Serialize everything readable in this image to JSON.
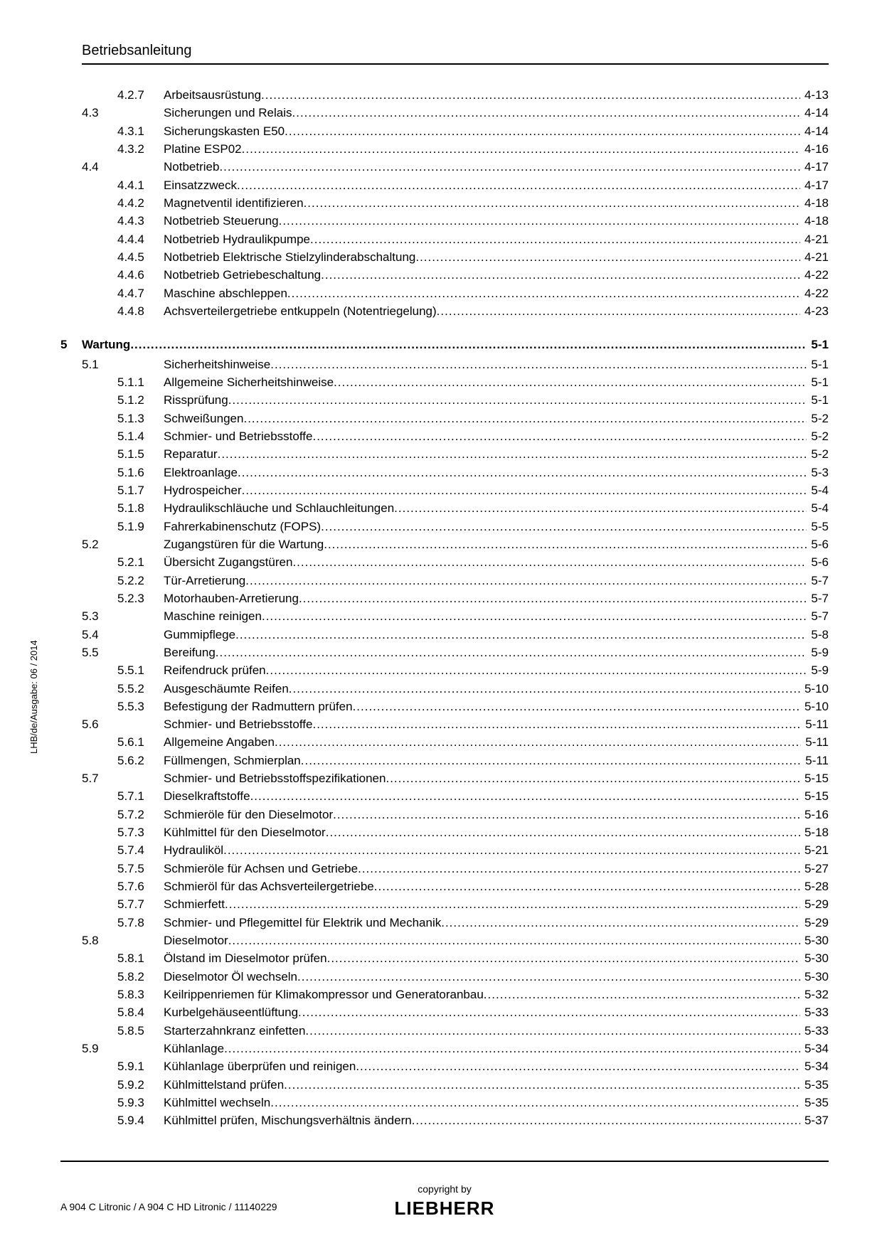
{
  "header": {
    "title": "Betriebsanleitung"
  },
  "side_label": "LHB/de/Ausgabe: 06 / 2014",
  "footer": {
    "copyright": "copyright by",
    "brand": "LIEBHERR",
    "docref": "A 904 C Litronic / A 904 C HD Litronic / 11140229"
  },
  "toc": [
    {
      "level": 3,
      "num": "4.2.7",
      "title": "Arbeitsausrüstung",
      "page": "4-13"
    },
    {
      "level": 2,
      "num": "4.3",
      "title": "Sicherungen und Relais",
      "page": "4-14"
    },
    {
      "level": 3,
      "num": "4.3.1",
      "title": "Sicherungskasten E50",
      "page": "4-14"
    },
    {
      "level": 3,
      "num": "4.3.2",
      "title": "Platine ESP02",
      "page": "4-16"
    },
    {
      "level": 2,
      "num": "4.4",
      "title": "Notbetrieb",
      "page": "4-17"
    },
    {
      "level": 3,
      "num": "4.4.1",
      "title": "Einsatzzweck",
      "page": "4-17"
    },
    {
      "level": 3,
      "num": "4.4.2",
      "title": "Magnetventil identifizieren",
      "page": "4-18"
    },
    {
      "level": 3,
      "num": "4.4.3",
      "title": "Notbetrieb Steuerung",
      "page": "4-18"
    },
    {
      "level": 3,
      "num": "4.4.4",
      "title": "Notbetrieb Hydraulikpumpe",
      "page": "4-21"
    },
    {
      "level": 3,
      "num": "4.4.5",
      "title": "Notbetrieb Elektrische Stielzylinderabschaltung",
      "page": "4-21"
    },
    {
      "level": 3,
      "num": "4.4.6",
      "title": "Notbetrieb Getriebeschaltung",
      "page": "4-22"
    },
    {
      "level": 3,
      "num": "4.4.7",
      "title": "Maschine abschleppen",
      "page": "4-22"
    },
    {
      "level": 3,
      "num": "4.4.8",
      "title": "Achsverteilergetriebe entkuppeln (Notentriegelung)",
      "page": "4-23"
    },
    {
      "level": 1,
      "num": "5",
      "title": "Wartung",
      "page": "5-1"
    },
    {
      "level": 2,
      "num": "5.1",
      "title": "Sicherheitshinweise",
      "page": "5-1"
    },
    {
      "level": 3,
      "num": "5.1.1",
      "title": "Allgemeine Sicherheitshinweise",
      "page": "5-1"
    },
    {
      "level": 3,
      "num": "5.1.2",
      "title": "Rissprüfung",
      "page": "5-1"
    },
    {
      "level": 3,
      "num": "5.1.3",
      "title": "Schweißungen",
      "page": "5-2"
    },
    {
      "level": 3,
      "num": "5.1.4",
      "title": "Schmier- und Betriebsstoffe",
      "page": "5-2"
    },
    {
      "level": 3,
      "num": "5.1.5",
      "title": "Reparatur",
      "page": "5-2"
    },
    {
      "level": 3,
      "num": "5.1.6",
      "title": "Elektroanlage",
      "page": "5-3"
    },
    {
      "level": 3,
      "num": "5.1.7",
      "title": "Hydrospeicher",
      "page": "5-4"
    },
    {
      "level": 3,
      "num": "5.1.8",
      "title": "Hydraulikschläuche und Schlauchleitungen",
      "page": "5-4"
    },
    {
      "level": 3,
      "num": "5.1.9",
      "title": "Fahrerkabinenschutz (FOPS)",
      "page": "5-5"
    },
    {
      "level": 2,
      "num": "5.2",
      "title": "Zugangstüren für die Wartung",
      "page": "5-6"
    },
    {
      "level": 3,
      "num": "5.2.1",
      "title": "Übersicht Zugangstüren",
      "page": "5-6"
    },
    {
      "level": 3,
      "num": "5.2.2",
      "title": "Tür-Arretierung",
      "page": "5-7"
    },
    {
      "level": 3,
      "num": "5.2.3",
      "title": "Motorhauben-Arretierung",
      "page": "5-7"
    },
    {
      "level": 2,
      "num": "5.3",
      "title": "Maschine reinigen",
      "page": "5-7"
    },
    {
      "level": 2,
      "num": "5.4",
      "title": "Gummipflege",
      "page": "5-8"
    },
    {
      "level": 2,
      "num": "5.5",
      "title": "Bereifung",
      "page": "5-9"
    },
    {
      "level": 3,
      "num": "5.5.1",
      "title": "Reifendruck prüfen",
      "page": "5-9"
    },
    {
      "level": 3,
      "num": "5.5.2",
      "title": "Ausgeschäumte Reifen",
      "page": "5-10"
    },
    {
      "level": 3,
      "num": "5.5.3",
      "title": "Befestigung der Radmuttern prüfen",
      "page": "5-10"
    },
    {
      "level": 2,
      "num": "5.6",
      "title": "Schmier- und Betriebsstoffe",
      "page": "5-11"
    },
    {
      "level": 3,
      "num": "5.6.1",
      "title": "Allgemeine Angaben",
      "page": "5-11"
    },
    {
      "level": 3,
      "num": "5.6.2",
      "title": "Füllmengen, Schmierplan",
      "page": "5-11"
    },
    {
      "level": 2,
      "num": "5.7",
      "title": "Schmier- und Betriebsstoffspezifikationen",
      "page": "5-15"
    },
    {
      "level": 3,
      "num": "5.7.1",
      "title": "Dieselkraftstoffe",
      "page": "5-15"
    },
    {
      "level": 3,
      "num": "5.7.2",
      "title": "Schmieröle für den Dieselmotor",
      "page": "5-16"
    },
    {
      "level": 3,
      "num": "5.7.3",
      "title": "Kühlmittel für den Dieselmotor",
      "page": "5-18"
    },
    {
      "level": 3,
      "num": "5.7.4",
      "title": "Hydrauliköl",
      "page": "5-21"
    },
    {
      "level": 3,
      "num": "5.7.5",
      "title": "Schmieröle für Achsen und Getriebe",
      "page": "5-27"
    },
    {
      "level": 3,
      "num": "5.7.6",
      "title": "Schmieröl für das Achsverteilergetriebe",
      "page": "5-28"
    },
    {
      "level": 3,
      "num": "5.7.7",
      "title": "Schmierfett",
      "page": "5-29"
    },
    {
      "level": 3,
      "num": "5.7.8",
      "title": "Schmier- und Pflegemittel für Elektrik und Mechanik",
      "page": "5-29"
    },
    {
      "level": 2,
      "num": "5.8",
      "title": "Dieselmotor",
      "page": "5-30"
    },
    {
      "level": 3,
      "num": "5.8.1",
      "title": "Ölstand im Dieselmotor prüfen",
      "page": "5-30"
    },
    {
      "level": 3,
      "num": "5.8.2",
      "title": "Dieselmotor Öl wechseln",
      "page": "5-30"
    },
    {
      "level": 3,
      "num": "5.8.3",
      "title": "Keilrippenriemen für Klimakompressor und Generatoranbau",
      "page": "5-32"
    },
    {
      "level": 3,
      "num": "5.8.4",
      "title": "Kurbelgehäuseentlüftung",
      "page": "5-33"
    },
    {
      "level": 3,
      "num": "5.8.5",
      "title": "Starterzahnkranz einfetten",
      "page": "5-33"
    },
    {
      "level": 2,
      "num": "5.9",
      "title": "Kühlanlage",
      "page": "5-34"
    },
    {
      "level": 3,
      "num": "5.9.1",
      "title": "Kühlanlage überprüfen und reinigen",
      "page": "5-34"
    },
    {
      "level": 3,
      "num": "5.9.2",
      "title": "Kühlmittelstand prüfen",
      "page": "5-35"
    },
    {
      "level": 3,
      "num": "5.9.3",
      "title": "Kühlmittel wechseln",
      "page": "5-35"
    },
    {
      "level": 3,
      "num": "5.9.4",
      "title": "Kühlmittel prüfen, Mischungsverhältnis ändern",
      "page": "5-37"
    }
  ]
}
